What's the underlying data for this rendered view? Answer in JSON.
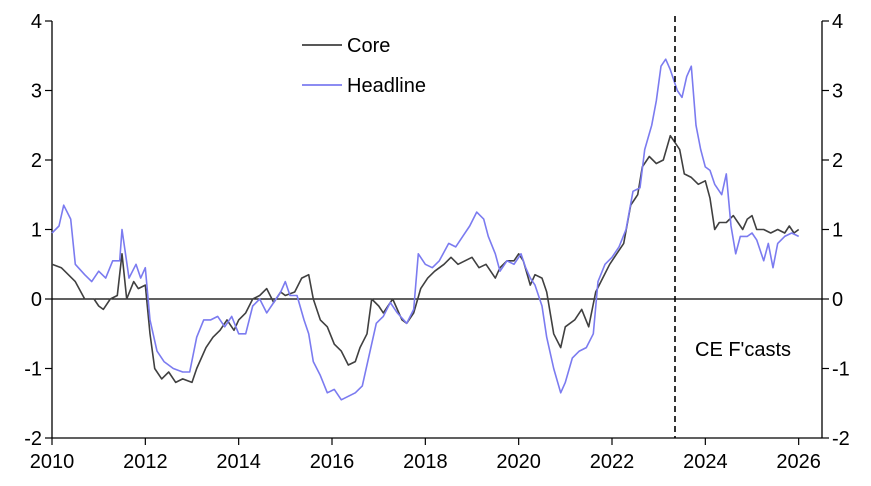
{
  "chart_data": {
    "type": "line",
    "title": "",
    "xlabel": "",
    "ylabel": "",
    "xlim": [
      2010,
      2026.5
    ],
    "ylim": [
      -2,
      4
    ],
    "x_ticks": [
      "2010",
      "2012",
      "2014",
      "2016",
      "2018",
      "2020",
      "2022",
      "2024",
      "2026"
    ],
    "y_ticks_left": [
      "-2",
      "-1",
      "0",
      "1",
      "2",
      "3",
      "4"
    ],
    "y_ticks_right": [
      "-2",
      "-1",
      "0",
      "1",
      "2",
      "3",
      "4"
    ],
    "grid": false,
    "legend_position": "top-left",
    "forecast_start": 2023.35,
    "annotation": "CE F'casts",
    "series": [
      {
        "name": "Core",
        "color": "#404040",
        "points": [
          [
            2010.0,
            0.5
          ],
          [
            2010.2,
            0.45
          ],
          [
            2010.5,
            0.25
          ],
          [
            2010.7,
            0.0
          ],
          [
            2010.9,
            0.0
          ],
          [
            2011.0,
            -0.1
          ],
          [
            2011.1,
            -0.15
          ],
          [
            2011.25,
            0.0
          ],
          [
            2011.4,
            0.05
          ],
          [
            2011.5,
            0.65
          ],
          [
            2011.6,
            0.0
          ],
          [
            2011.75,
            0.25
          ],
          [
            2011.85,
            0.15
          ],
          [
            2012.0,
            0.2
          ],
          [
            2012.1,
            -0.5
          ],
          [
            2012.2,
            -1.0
          ],
          [
            2012.35,
            -1.15
          ],
          [
            2012.5,
            -1.05
          ],
          [
            2012.65,
            -1.2
          ],
          [
            2012.8,
            -1.15
          ],
          [
            2013.0,
            -1.2
          ],
          [
            2013.1,
            -1.0
          ],
          [
            2013.3,
            -0.7
          ],
          [
            2013.45,
            -0.55
          ],
          [
            2013.6,
            -0.45
          ],
          [
            2013.75,
            -0.3
          ],
          [
            2013.9,
            -0.45
          ],
          [
            2014.0,
            -0.3
          ],
          [
            2014.15,
            -0.2
          ],
          [
            2014.3,
            0.0
          ],
          [
            2014.45,
            0.05
          ],
          [
            2014.6,
            0.15
          ],
          [
            2014.75,
            -0.05
          ],
          [
            2014.9,
            0.1
          ],
          [
            2015.0,
            0.05
          ],
          [
            2015.2,
            0.1
          ],
          [
            2015.35,
            0.3
          ],
          [
            2015.5,
            0.35
          ],
          [
            2015.6,
            0.0
          ],
          [
            2015.75,
            -0.3
          ],
          [
            2015.9,
            -0.4
          ],
          [
            2016.05,
            -0.65
          ],
          [
            2016.2,
            -0.75
          ],
          [
            2016.35,
            -0.95
          ],
          [
            2016.5,
            -0.9
          ],
          [
            2016.6,
            -0.7
          ],
          [
            2016.75,
            -0.5
          ],
          [
            2016.85,
            0.0
          ],
          [
            2017.0,
            -0.1
          ],
          [
            2017.1,
            -0.2
          ],
          [
            2017.3,
            0.0
          ],
          [
            2017.5,
            -0.3
          ],
          [
            2017.6,
            -0.35
          ],
          [
            2017.75,
            -0.2
          ],
          [
            2017.9,
            0.15
          ],
          [
            2018.05,
            0.3
          ],
          [
            2018.2,
            0.4
          ],
          [
            2018.4,
            0.5
          ],
          [
            2018.55,
            0.6
          ],
          [
            2018.7,
            0.5
          ],
          [
            2018.85,
            0.55
          ],
          [
            2019.0,
            0.6
          ],
          [
            2019.15,
            0.45
          ],
          [
            2019.3,
            0.5
          ],
          [
            2019.5,
            0.3
          ],
          [
            2019.6,
            0.45
          ],
          [
            2019.75,
            0.55
          ],
          [
            2019.9,
            0.55
          ],
          [
            2020.0,
            0.65
          ],
          [
            2020.1,
            0.55
          ],
          [
            2020.25,
            0.2
          ],
          [
            2020.35,
            0.35
          ],
          [
            2020.5,
            0.3
          ],
          [
            2020.6,
            0.1
          ],
          [
            2020.75,
            -0.5
          ],
          [
            2020.9,
            -0.7
          ],
          [
            2021.0,
            -0.4
          ],
          [
            2021.2,
            -0.3
          ],
          [
            2021.35,
            -0.15
          ],
          [
            2021.5,
            -0.4
          ],
          [
            2021.65,
            0.1
          ],
          [
            2021.8,
            0.3
          ],
          [
            2021.95,
            0.5
          ],
          [
            2022.1,
            0.65
          ],
          [
            2022.25,
            0.8
          ],
          [
            2022.4,
            1.35
          ],
          [
            2022.55,
            1.5
          ],
          [
            2022.65,
            1.9
          ],
          [
            2022.8,
            2.05
          ],
          [
            2022.95,
            1.95
          ],
          [
            2023.1,
            2.0
          ],
          [
            2023.25,
            2.35
          ],
          [
            2023.35,
            2.25
          ],
          [
            2023.45,
            2.15
          ],
          [
            2023.55,
            1.8
          ],
          [
            2023.7,
            1.75
          ],
          [
            2023.85,
            1.65
          ],
          [
            2024.0,
            1.7
          ],
          [
            2024.1,
            1.45
          ],
          [
            2024.2,
            1.0
          ],
          [
            2024.3,
            1.1
          ],
          [
            2024.45,
            1.1
          ],
          [
            2024.6,
            1.2
          ],
          [
            2024.7,
            1.1
          ],
          [
            2024.8,
            1.0
          ],
          [
            2024.9,
            1.15
          ],
          [
            2025.0,
            1.2
          ],
          [
            2025.1,
            1.0
          ],
          [
            2025.25,
            1.0
          ],
          [
            2025.4,
            0.95
          ],
          [
            2025.55,
            1.0
          ],
          [
            2025.7,
            0.95
          ],
          [
            2025.8,
            1.05
          ],
          [
            2025.9,
            0.95
          ],
          [
            2026.0,
            1.0
          ]
        ]
      },
      {
        "name": "Headline",
        "color": "#7b7bf0",
        "points": [
          [
            2010.0,
            0.95
          ],
          [
            2010.15,
            1.05
          ],
          [
            2010.25,
            1.35
          ],
          [
            2010.4,
            1.15
          ],
          [
            2010.5,
            0.5
          ],
          [
            2010.7,
            0.35
          ],
          [
            2010.85,
            0.25
          ],
          [
            2011.0,
            0.4
          ],
          [
            2011.15,
            0.3
          ],
          [
            2011.3,
            0.55
          ],
          [
            2011.45,
            0.55
          ],
          [
            2011.5,
            1.0
          ],
          [
            2011.65,
            0.3
          ],
          [
            2011.8,
            0.5
          ],
          [
            2011.9,
            0.3
          ],
          [
            2012.0,
            0.45
          ],
          [
            2012.1,
            -0.3
          ],
          [
            2012.25,
            -0.75
          ],
          [
            2012.4,
            -0.9
          ],
          [
            2012.6,
            -1.0
          ],
          [
            2012.8,
            -1.05
          ],
          [
            2012.95,
            -1.05
          ],
          [
            2013.1,
            -0.55
          ],
          [
            2013.25,
            -0.3
          ],
          [
            2013.4,
            -0.3
          ],
          [
            2013.55,
            -0.25
          ],
          [
            2013.7,
            -0.4
          ],
          [
            2013.85,
            -0.25
          ],
          [
            2014.0,
            -0.5
          ],
          [
            2014.15,
            -0.5
          ],
          [
            2014.3,
            -0.1
          ],
          [
            2014.45,
            0.0
          ],
          [
            2014.6,
            -0.2
          ],
          [
            2014.75,
            -0.05
          ],
          [
            2014.9,
            0.1
          ],
          [
            2015.0,
            0.25
          ],
          [
            2015.1,
            0.05
          ],
          [
            2015.25,
            0.05
          ],
          [
            2015.4,
            -0.3
          ],
          [
            2015.5,
            -0.5
          ],
          [
            2015.6,
            -0.9
          ],
          [
            2015.75,
            -1.1
          ],
          [
            2015.9,
            -1.35
          ],
          [
            2016.05,
            -1.3
          ],
          [
            2016.2,
            -1.45
          ],
          [
            2016.35,
            -1.4
          ],
          [
            2016.5,
            -1.35
          ],
          [
            2016.65,
            -1.25
          ],
          [
            2016.8,
            -0.8
          ],
          [
            2016.95,
            -0.35
          ],
          [
            2017.1,
            -0.25
          ],
          [
            2017.25,
            -0.05
          ],
          [
            2017.4,
            -0.2
          ],
          [
            2017.6,
            -0.35
          ],
          [
            2017.75,
            -0.15
          ],
          [
            2017.85,
            0.65
          ],
          [
            2018.0,
            0.5
          ],
          [
            2018.15,
            0.45
          ],
          [
            2018.3,
            0.55
          ],
          [
            2018.5,
            0.8
          ],
          [
            2018.65,
            0.75
          ],
          [
            2018.8,
            0.9
          ],
          [
            2018.95,
            1.05
          ],
          [
            2019.1,
            1.25
          ],
          [
            2019.25,
            1.15
          ],
          [
            2019.35,
            0.9
          ],
          [
            2019.5,
            0.65
          ],
          [
            2019.6,
            0.4
          ],
          [
            2019.75,
            0.55
          ],
          [
            2019.9,
            0.5
          ],
          [
            2020.05,
            0.65
          ],
          [
            2020.15,
            0.45
          ],
          [
            2020.25,
            0.3
          ],
          [
            2020.35,
            0.2
          ],
          [
            2020.5,
            -0.1
          ],
          [
            2020.6,
            -0.55
          ],
          [
            2020.75,
            -1.0
          ],
          [
            2020.9,
            -1.35
          ],
          [
            2021.0,
            -1.2
          ],
          [
            2021.15,
            -0.85
          ],
          [
            2021.3,
            -0.75
          ],
          [
            2021.45,
            -0.7
          ],
          [
            2021.6,
            -0.5
          ],
          [
            2021.7,
            0.25
          ],
          [
            2021.85,
            0.5
          ],
          [
            2022.0,
            0.6
          ],
          [
            2022.15,
            0.75
          ],
          [
            2022.3,
            1.0
          ],
          [
            2022.45,
            1.55
          ],
          [
            2022.6,
            1.6
          ],
          [
            2022.7,
            2.15
          ],
          [
            2022.85,
            2.5
          ],
          [
            2022.95,
            2.85
          ],
          [
            2023.05,
            3.35
          ],
          [
            2023.15,
            3.45
          ],
          [
            2023.25,
            3.3
          ],
          [
            2023.4,
            3.0
          ],
          [
            2023.5,
            2.9
          ],
          [
            2023.6,
            3.2
          ],
          [
            2023.7,
            3.35
          ],
          [
            2023.8,
            2.5
          ],
          [
            2023.9,
            2.15
          ],
          [
            2024.0,
            1.9
          ],
          [
            2024.1,
            1.85
          ],
          [
            2024.2,
            1.65
          ],
          [
            2024.35,
            1.5
          ],
          [
            2024.45,
            1.8
          ],
          [
            2024.55,
            1.05
          ],
          [
            2024.65,
            0.65
          ],
          [
            2024.75,
            0.9
          ],
          [
            2024.9,
            0.9
          ],
          [
            2025.0,
            0.95
          ],
          [
            2025.1,
            0.85
          ],
          [
            2025.25,
            0.55
          ],
          [
            2025.35,
            0.8
          ],
          [
            2025.45,
            0.45
          ],
          [
            2025.55,
            0.8
          ],
          [
            2025.7,
            0.9
          ],
          [
            2025.85,
            0.95
          ],
          [
            2026.0,
            0.9
          ]
        ]
      }
    ]
  }
}
